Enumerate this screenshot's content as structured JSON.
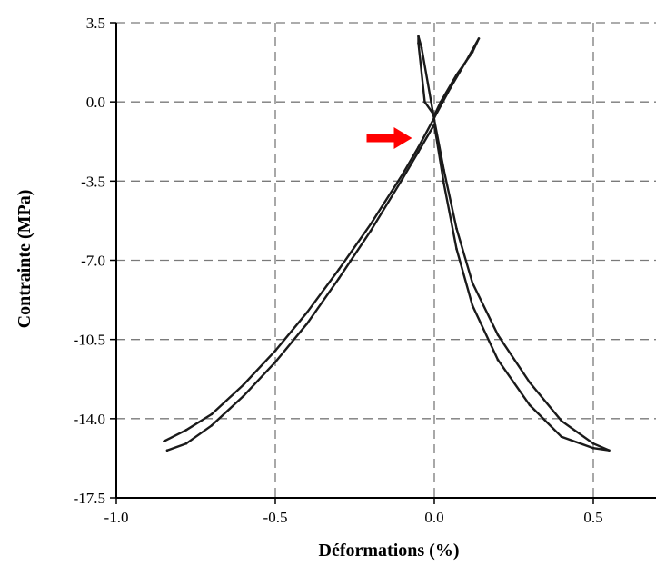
{
  "chart_data": {
    "type": "line",
    "title": "",
    "xlabel": "Déformations (%)",
    "ylabel": "Contrainte (MPa)",
    "xlim": [
      -1.0,
      0.7
    ],
    "ylim": [
      -17.5,
      3.5
    ],
    "x_ticks": [
      -1.0,
      -0.5,
      0.0,
      0.5
    ],
    "x_tick_labels": [
      "-1.0",
      "-0.5",
      "0.0",
      "0.5"
    ],
    "y_ticks": [
      3.5,
      0.0,
      -3.5,
      -7.0,
      -10.5,
      -14.0,
      -17.5
    ],
    "y_tick_labels": [
      "3.5",
      "0.0",
      "-3.5",
      "-7.0",
      "-10.5",
      "-14.0",
      "-17.5"
    ],
    "grid": true,
    "series_color": "#1a1a1a",
    "annotation": {
      "type": "arrow",
      "color": "#ff0000",
      "points_to": [
        -0.07,
        -1.6
      ]
    },
    "series": [
      {
        "name": "",
        "points": [
          [
            -0.85,
            -15.0
          ],
          [
            -0.78,
            -14.5
          ],
          [
            -0.7,
            -13.8
          ],
          [
            -0.6,
            -12.5
          ],
          [
            -0.5,
            -11.0
          ],
          [
            -0.4,
            -9.3
          ],
          [
            -0.3,
            -7.4
          ],
          [
            -0.2,
            -5.4
          ],
          [
            -0.1,
            -3.2
          ],
          [
            -0.05,
            -2.0
          ],
          [
            0.0,
            -0.7
          ],
          [
            0.05,
            0.6
          ],
          [
            0.1,
            1.8
          ],
          [
            0.14,
            2.8
          ],
          [
            0.12,
            2.2
          ],
          [
            0.07,
            1.2
          ],
          [
            0.02,
            0.0
          ],
          [
            0.0,
            -0.6
          ],
          [
            -0.03,
            0.0
          ],
          [
            -0.05,
            2.6
          ],
          [
            -0.05,
            2.9
          ],
          [
            -0.04,
            2.4
          ],
          [
            -0.02,
            0.8
          ],
          [
            0.0,
            -0.8
          ],
          [
            0.03,
            -3.0
          ],
          [
            0.07,
            -5.6
          ],
          [
            0.12,
            -8.0
          ],
          [
            0.2,
            -10.3
          ],
          [
            0.3,
            -12.4
          ],
          [
            0.4,
            -14.1
          ],
          [
            0.5,
            -15.1
          ],
          [
            0.55,
            -15.4
          ],
          [
            0.5,
            -15.3
          ],
          [
            0.4,
            -14.8
          ],
          [
            0.3,
            -13.4
          ],
          [
            0.2,
            -11.4
          ],
          [
            0.12,
            -9.0
          ],
          [
            0.07,
            -6.5
          ],
          [
            0.03,
            -3.6
          ],
          [
            0.0,
            -1.0
          ],
          [
            -0.05,
            -2.2
          ],
          [
            -0.1,
            -3.4
          ],
          [
            -0.2,
            -5.7
          ],
          [
            -0.3,
            -7.8
          ],
          [
            -0.4,
            -9.8
          ],
          [
            -0.5,
            -11.5
          ],
          [
            -0.6,
            -13.0
          ],
          [
            -0.7,
            -14.3
          ],
          [
            -0.78,
            -15.1
          ],
          [
            -0.84,
            -15.4
          ]
        ]
      }
    ]
  }
}
